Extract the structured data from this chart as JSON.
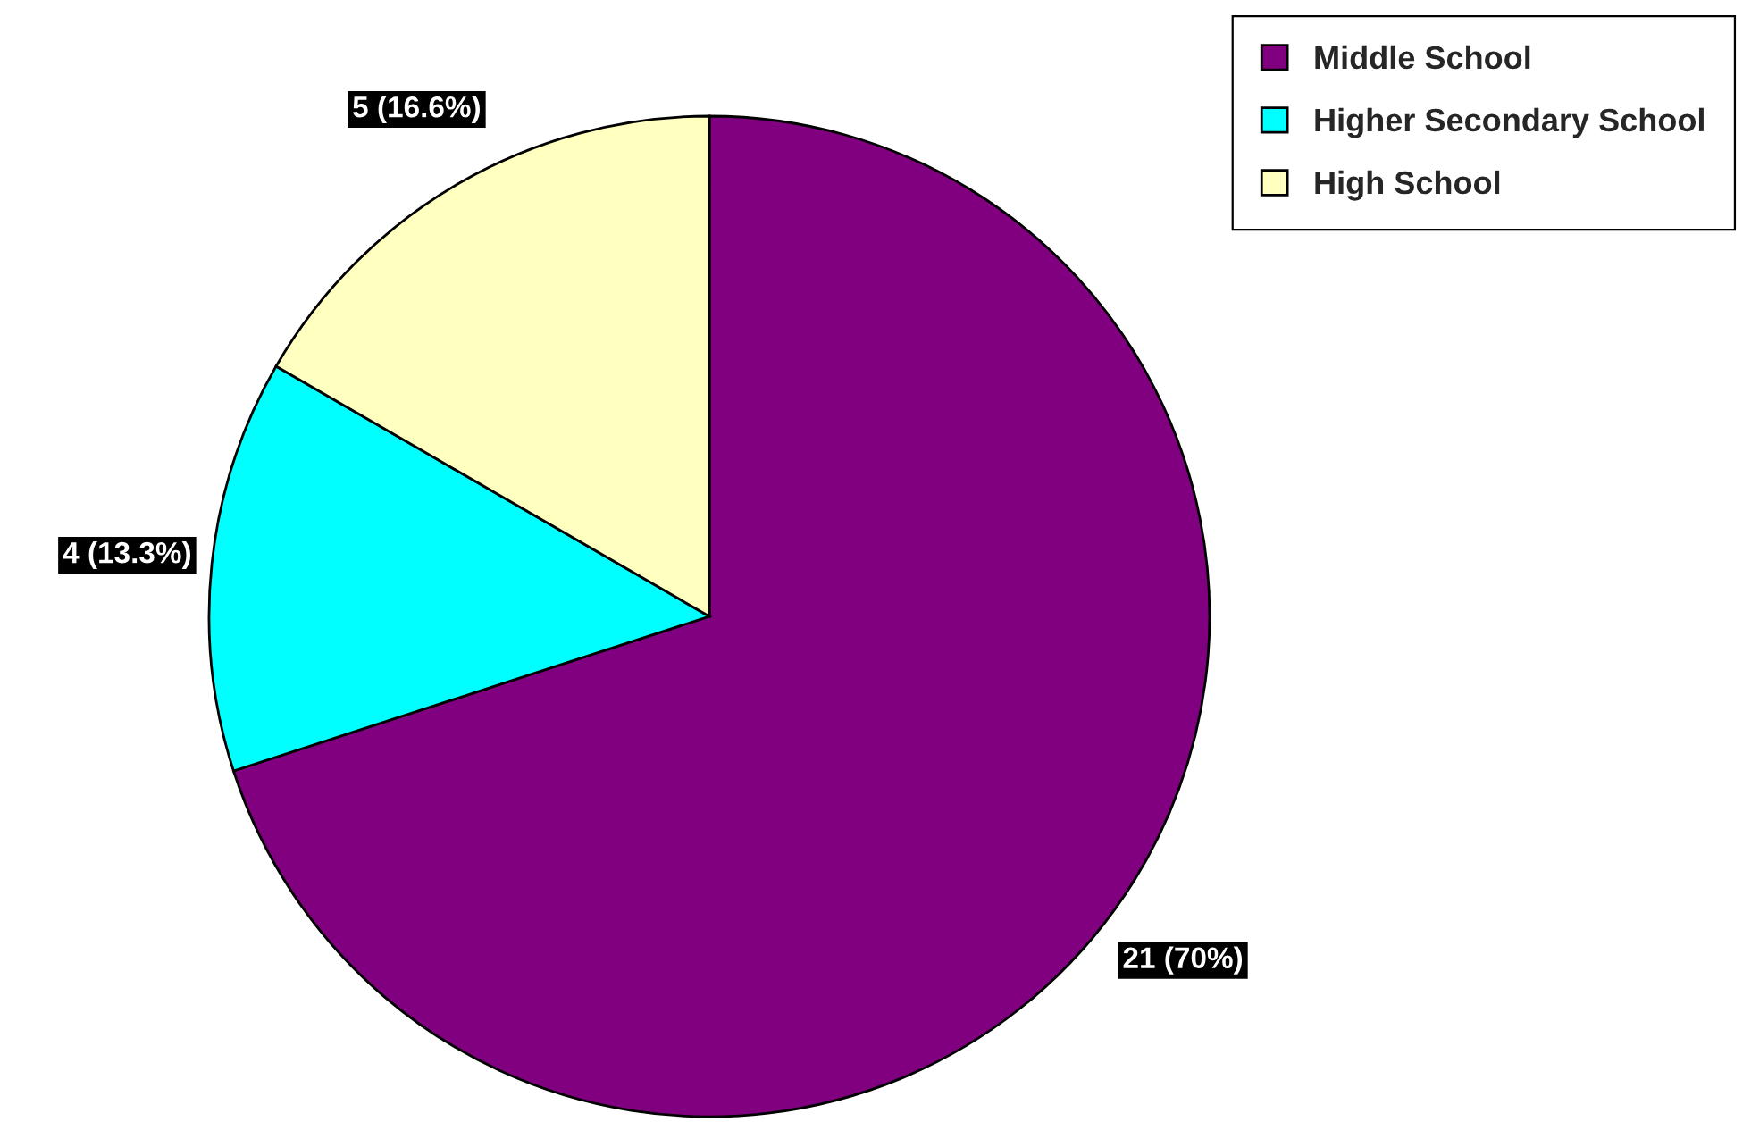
{
  "chart_data": {
    "type": "pie",
    "categories": [
      "Middle School",
      "Higher Secondary School",
      "High School"
    ],
    "values": [
      21,
      4,
      5
    ],
    "value_labels": [
      "21 (70%)",
      "4 (13.3%)",
      "5 (16.6%)"
    ],
    "colors": [
      "#800080",
      "#00ffff",
      "#ffffc0"
    ],
    "legend": "top right"
  }
}
